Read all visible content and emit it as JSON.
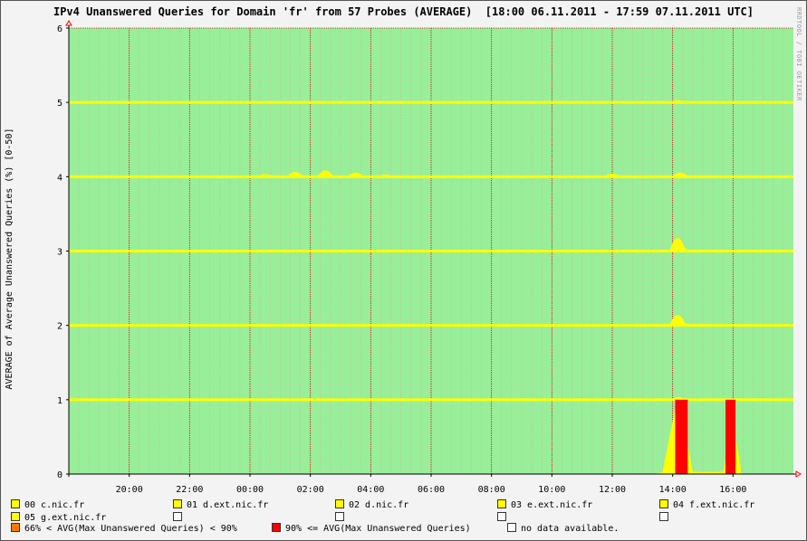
{
  "title": "IPv4 Unanswered Queries for Domain 'fr' from 57 Probes (AVERAGE)  [18:00 06.11.2011 - 17:59 07.11.2011 UTC]",
  "watermark": "RRDTOOL / TOBI OETIKER",
  "colors": {
    "background": "#99ee99",
    "grid": "#cc0000",
    "yellow": "#ffff00",
    "red": "#ff0000",
    "orange": "#ff7700",
    "white": "#ffffff"
  },
  "chart_data": {
    "type": "area",
    "title": "IPv4 Unanswered Queries for Domain 'fr' from 57 Probes (AVERAGE)  [18:00 06.11.2011 - 17:59 07.11.2011 UTC]",
    "ylabel": "AVERAGE of Average Unanswered Queries (%) [0-50]",
    "xlabel": "",
    "ylim": [
      0,
      6
    ],
    "yticks": [
      "0",
      "1",
      "2",
      "3",
      "4",
      "5",
      "6"
    ],
    "xticks": [
      "20:00",
      "22:00",
      "00:00",
      "02:00",
      "04:00",
      "06:00",
      "08:00",
      "10:00",
      "12:00",
      "14:00",
      "16:00"
    ],
    "xrange": [
      "18:00",
      "17:59"
    ],
    "grid": true,
    "series": [
      {
        "name": "00 c.nic.fr",
        "baseline": 0,
        "values": [
          {
            "x": "13:40",
            "y": 0.03
          },
          {
            "x": "14:10",
            "y": 1.05
          },
          {
            "x": "14:40",
            "y": 0.03
          },
          {
            "x": "15:40",
            "y": 0.03
          },
          {
            "x": "16:00",
            "y": 0.7
          },
          {
            "x": "16:15",
            "y": 0.0
          }
        ]
      },
      {
        "name": "01 d.ext.nic.fr",
        "baseline": 1,
        "values": [
          {
            "x": "14:10",
            "y": 0.05
          }
        ]
      },
      {
        "name": "02 d.nic.fr",
        "baseline": 2,
        "values": [
          {
            "x": "14:10",
            "y": 0.2
          },
          {
            "x": "14:20",
            "y": 0.05
          }
        ]
      },
      {
        "name": "03 e.ext.nic.fr",
        "baseline": 3,
        "values": [
          {
            "x": "14:10",
            "y": 0.25
          },
          {
            "x": "14:20",
            "y": 0.05
          }
        ]
      },
      {
        "name": "04 f.ext.nic.fr",
        "baseline": 4,
        "values": [
          {
            "x": "00:30",
            "y": 0.05
          },
          {
            "x": "01:30",
            "y": 0.09
          },
          {
            "x": "02:30",
            "y": 0.12
          },
          {
            "x": "03:30",
            "y": 0.08
          },
          {
            "x": "04:30",
            "y": 0.04
          },
          {
            "x": "12:00",
            "y": 0.06
          },
          {
            "x": "14:15",
            "y": 0.08
          }
        ]
      },
      {
        "name": "05 g.ext.nic.fr",
        "baseline": 5,
        "values": [
          {
            "x": "14:10",
            "y": 0.04
          }
        ]
      }
    ],
    "alert_bars": [
      {
        "level": "90% <= AVG(Max Unanswered Queries)",
        "from": "14:05",
        "to": "14:30",
        "y": 1
      },
      {
        "level": "90% <= AVG(Max Unanswered Queries)",
        "from": "15:45",
        "to": "16:05",
        "y": 1
      }
    ]
  },
  "legend": {
    "rows": [
      [
        {
          "label": "00 c.nic.fr",
          "color": "#ffff00"
        },
        {
          "label": "01 d.ext.nic.fr",
          "color": "#ffff00"
        },
        {
          "label": "02 d.nic.fr",
          "color": "#ffff00"
        },
        {
          "label": "03 e.ext.nic.fr",
          "color": "#ffff00"
        },
        {
          "label": "04 f.ext.nic.fr",
          "color": "#ffff00"
        }
      ],
      [
        {
          "label": "05 g.ext.nic.fr",
          "color": "#ffff00"
        },
        {
          "label": "",
          "color": "#ffffff"
        },
        {
          "label": "",
          "color": "#ffffff"
        },
        {
          "label": "",
          "color": "#ffffff"
        },
        {
          "label": "",
          "color": "#ffffff"
        }
      ]
    ],
    "status": [
      {
        "label": "66% < AVG(Max Unanswered Queries) < 90%",
        "color": "#ff7700"
      },
      {
        "label": "90% <= AVG(Max Unanswered Queries)",
        "color": "#ff0000"
      },
      {
        "label": "no data available.",
        "color": "#ffffff"
      }
    ]
  }
}
